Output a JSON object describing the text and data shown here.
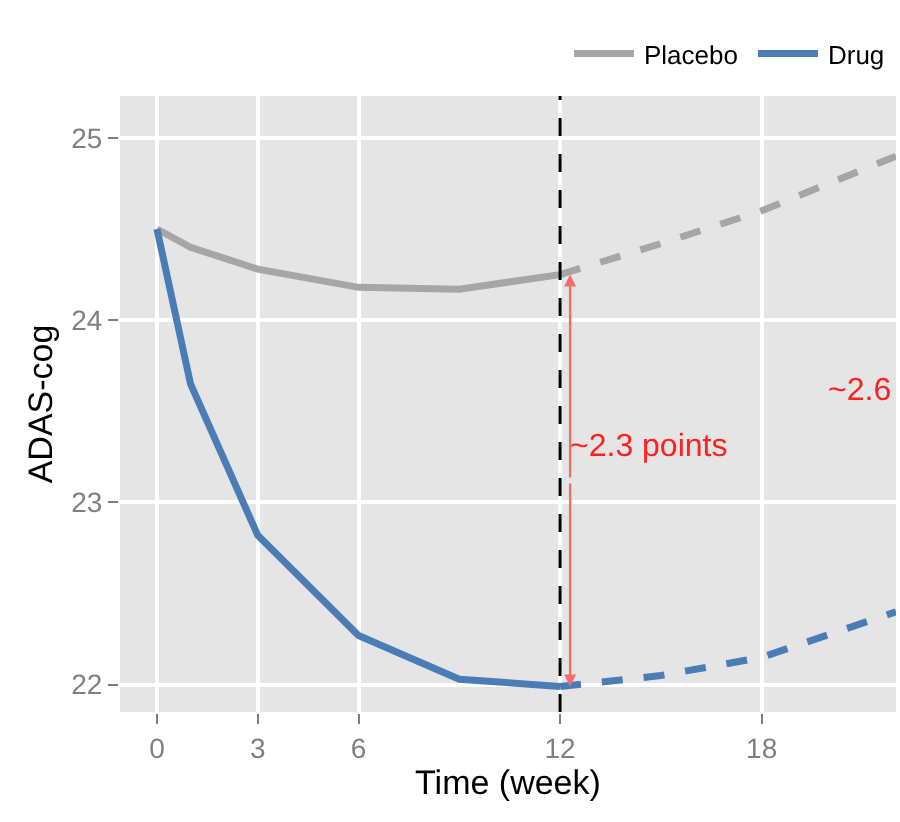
{
  "chart_data": {
    "type": "line",
    "xlabel": "Time (week)",
    "ylabel": "ADAS-cog",
    "series": [
      {
        "name": "Placebo",
        "color": "#a6a6a6",
        "x": [
          0,
          1,
          3,
          6,
          9,
          12
        ],
        "values": [
          24.5,
          24.4,
          24.28,
          24.18,
          24.17,
          24.25
        ]
      },
      {
        "name": "Drug",
        "color": "#4a7db5",
        "x": [
          0,
          1,
          3,
          6,
          9,
          12
        ],
        "values": [
          24.5,
          23.65,
          22.82,
          22.27,
          22.03,
          21.99
        ]
      },
      {
        "color": "#a6a6a6",
        "line_style": "dashed",
        "x": [
          12,
          15,
          18,
          22
        ],
        "values": [
          24.25,
          24.42,
          24.6,
          24.9
        ]
      },
      {
        "color": "#4a7db5",
        "line_style": "dashed",
        "x": [
          12,
          15,
          18,
          22
        ],
        "values": [
          21.99,
          22.05,
          22.15,
          22.4
        ]
      }
    ],
    "xlim": [
      -1.1,
      22
    ],
    "xticks": [
      0,
      3,
      6,
      12,
      18
    ],
    "ylim": [
      21.85,
      25.23
    ],
    "yticks": [
      22,
      23,
      24,
      25
    ],
    "ref_lines": [
      {
        "axis": "x",
        "value": 12,
        "color": "#000000",
        "line_style": "dashed"
      }
    ],
    "annotations": [
      {
        "text": "~2.3 points",
        "x": 12.2,
        "y": 23.3
      },
      "~2.6"
    ],
    "grid": true,
    "legend": "top",
    "line_style": "solid",
    "marker": "none"
  }
}
